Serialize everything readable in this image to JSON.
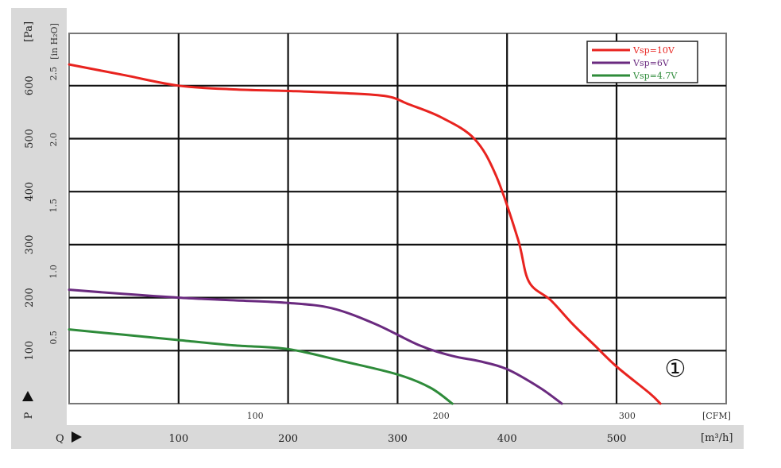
{
  "chart_data": {
    "type": "line",
    "title": "",
    "axes": {
      "pa_unit": "[Pa]",
      "inh2o_unit": "[in H₂O]",
      "cfm_unit": "[CFM]",
      "m3h_unit": "[m³/h]",
      "p_label": "P",
      "q_label": "Q",
      "pa_ticks": [
        100,
        200,
        300,
        400,
        500,
        600
      ],
      "inh2o_ticks": [
        "0.5",
        "1.0",
        "1.5",
        "2.0",
        "2.5"
      ],
      "cfm_ticks": [
        100,
        200,
        300
      ],
      "m3h_ticks": [
        100,
        200,
        300,
        400,
        500
      ],
      "xlim_m3h": [
        0,
        600
      ],
      "ylim_pa": [
        0,
        700
      ]
    },
    "grid": true,
    "legend_position": "top-right",
    "annotation": "①",
    "series": [
      {
        "name": "Vsp=10V",
        "color": "#e8231f",
        "x": [
          0,
          50,
          100,
          150,
          200,
          250,
          290,
          310,
          340,
          370,
          390,
          410,
          420,
          440,
          460,
          480,
          500,
          530,
          540
        ],
        "y": [
          640,
          620,
          600,
          593,
          590,
          586,
          580,
          565,
          540,
          500,
          430,
          310,
          230,
          195,
          150,
          110,
          70,
          20,
          0
        ]
      },
      {
        "name": "Vsp=6V",
        "color": "#6a2a7f",
        "x": [
          0,
          50,
          100,
          150,
          200,
          240,
          280,
          320,
          350,
          375,
          400,
          430,
          450
        ],
        "y": [
          215,
          207,
          200,
          195,
          190,
          180,
          150,
          110,
          90,
          80,
          65,
          30,
          0
        ]
      },
      {
        "name": "Vsp=4.7V",
        "color": "#2e8b3a",
        "x": [
          0,
          50,
          100,
          150,
          200,
          250,
          300,
          330,
          350
        ],
        "y": [
          140,
          130,
          120,
          110,
          103,
          80,
          55,
          30,
          0
        ]
      }
    ]
  }
}
